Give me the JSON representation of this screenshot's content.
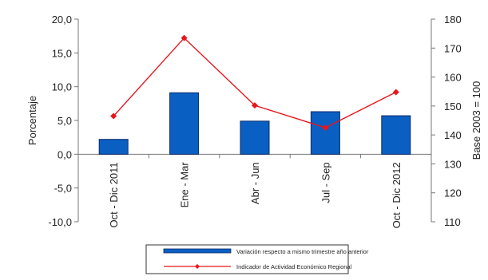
{
  "chart_data": {
    "type": "bar",
    "categories": [
      "Oct - Dic 2011",
      "Ene - Mar",
      "Abr - Jun",
      "Jul - Sep",
      "Oct - Dic 2012"
    ],
    "series": [
      {
        "name": "Variación respecto a mismo trimestre año anterior",
        "type": "bar",
        "axis": "left",
        "values": [
          2.2,
          9.1,
          4.9,
          6.3,
          5.7
        ]
      },
      {
        "name": "Indicador de Actividad Económico Regional",
        "type": "line",
        "axis": "right",
        "values": [
          146.5,
          173.5,
          150.2,
          142.5,
          154.8
        ]
      }
    ],
    "ylabel": "Porcentaje",
    "ylabel_right": "Base 2003 = 100",
    "ylim": [
      -10,
      20
    ],
    "ylim_right": [
      110,
      180
    ],
    "yticks": [
      "-10,0",
      "-5,0",
      "0,0",
      "5,0",
      "10,0",
      "15,0",
      "20,0"
    ],
    "yticks_right": [
      "110",
      "120",
      "130",
      "140",
      "150",
      "160",
      "170",
      "180"
    ],
    "legend_position": "bottom",
    "grid": false,
    "colors": {
      "bar": "#0a5fc2",
      "bar_edge": "#0a2a6a",
      "line": "#e8161b"
    }
  }
}
